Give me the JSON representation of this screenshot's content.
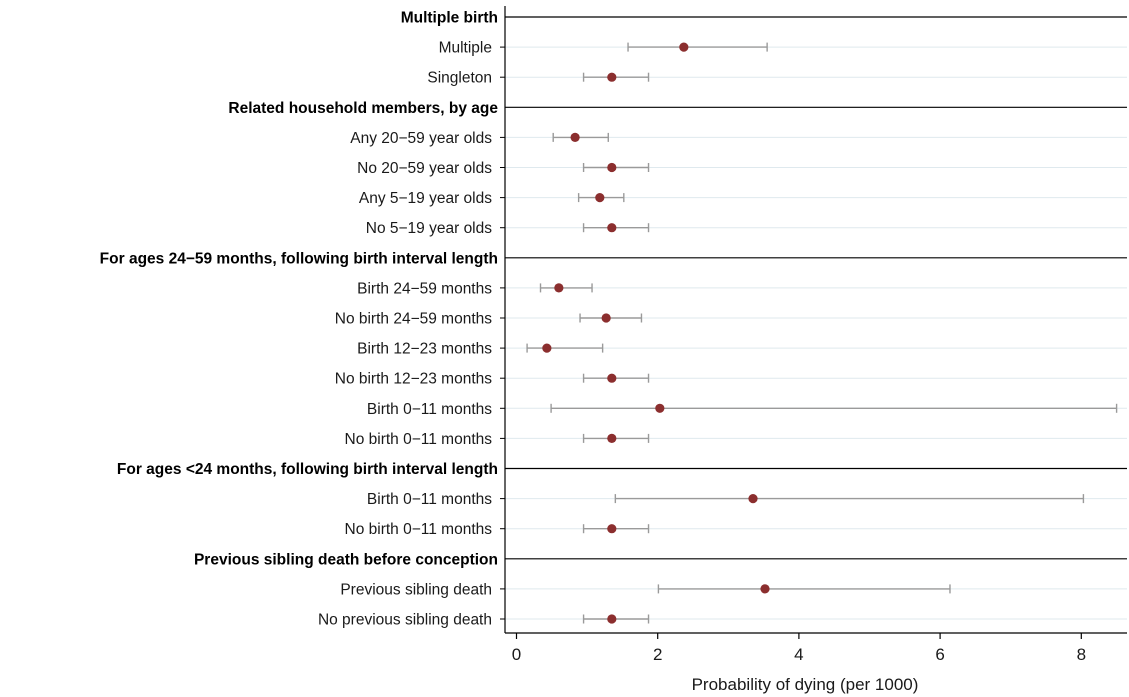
{
  "chart_data": {
    "type": "scatter",
    "subtype": "forest-plot",
    "xlabel": "Probability of dying (per 1000)",
    "xlim": [
      -0.2,
      8.6
    ],
    "xticks": [
      0,
      2,
      4,
      6,
      8
    ],
    "grid": "horizontal-lines-per-row",
    "colors": {
      "point": "#8b2e2e",
      "ci": "#9a9a9a",
      "grid": "#dfe9ee",
      "header_line": "#000000"
    },
    "groups": [
      {
        "header": "Multiple birth",
        "rows": [
          {
            "label": "Multiple",
            "est": 2.37,
            "lo": 1.58,
            "hi": 3.55
          },
          {
            "label": "Singleton",
            "est": 1.35,
            "lo": 0.95,
            "hi": 1.87
          }
        ]
      },
      {
        "header": "Related household members, by age",
        "rows": [
          {
            "label": "Any 20−59 year olds",
            "est": 0.83,
            "lo": 0.52,
            "hi": 1.3
          },
          {
            "label": "No 20−59 year olds",
            "est": 1.35,
            "lo": 0.95,
            "hi": 1.87
          },
          {
            "label": "Any 5−19 year olds",
            "est": 1.18,
            "lo": 0.88,
            "hi": 1.52
          },
          {
            "label": "No 5−19 year olds",
            "est": 1.35,
            "lo": 0.95,
            "hi": 1.87
          }
        ]
      },
      {
        "header": "For ages 24−59 months, following birth interval length",
        "rows": [
          {
            "label": "Birth 24−59 months",
            "est": 0.6,
            "lo": 0.34,
            "hi": 1.07
          },
          {
            "label": "No birth 24−59 months",
            "est": 1.27,
            "lo": 0.9,
            "hi": 1.77
          },
          {
            "label": "Birth 12−23 months",
            "est": 0.43,
            "lo": 0.15,
            "hi": 1.22
          },
          {
            "label": "No birth 12−23 months",
            "est": 1.35,
            "lo": 0.95,
            "hi": 1.87
          },
          {
            "label": "Birth 0−11 months",
            "est": 2.03,
            "lo": 0.49,
            "hi": 8.5
          },
          {
            "label": "No birth 0−11 months",
            "est": 1.35,
            "lo": 0.95,
            "hi": 1.87
          }
        ]
      },
      {
        "header": "For ages <24 months, following birth interval length",
        "rows": [
          {
            "label": "Birth 0−11 months",
            "est": 3.35,
            "lo": 1.4,
            "hi": 8.03
          },
          {
            "label": "No birth 0−11 months",
            "est": 1.35,
            "lo": 0.95,
            "hi": 1.87
          }
        ]
      },
      {
        "header": "Previous sibling death before conception",
        "rows": [
          {
            "label": "Previous sibling death",
            "est": 3.52,
            "lo": 2.01,
            "hi": 6.14
          },
          {
            "label": "No previous sibling death",
            "est": 1.35,
            "lo": 0.95,
            "hi": 1.87
          }
        ]
      }
    ]
  }
}
